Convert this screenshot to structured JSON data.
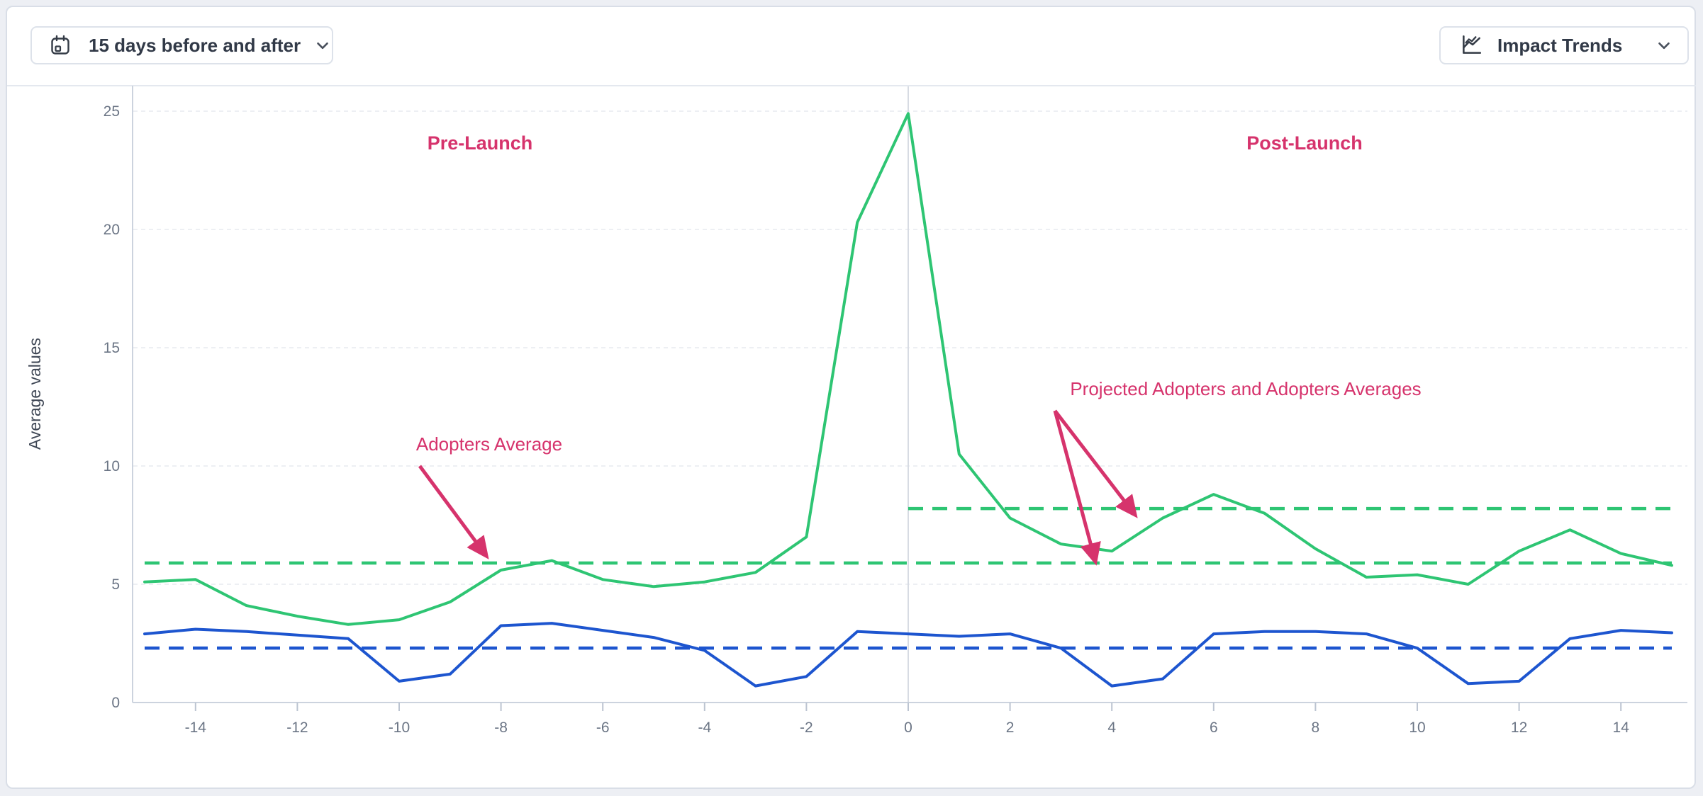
{
  "header": {
    "date_range_button": {
      "label": "15 days before and after",
      "icon": "calendar-icon"
    },
    "trends_button": {
      "label": "Impact Trends",
      "icon": "line-chart-icon"
    }
  },
  "chart_data": {
    "type": "line",
    "title": "",
    "xlabel": "",
    "ylabel": "Average values",
    "xlim": [
      -15,
      15
    ],
    "ylim": [
      0,
      26
    ],
    "grid": true,
    "legend": false,
    "x": [
      -15,
      -14,
      -13,
      -12,
      -11,
      -10,
      -9,
      -8,
      -7,
      -6,
      -5,
      -4,
      -3,
      -2,
      -1,
      0,
      1,
      2,
      3,
      4,
      5,
      6,
      7,
      8,
      9,
      10,
      11,
      12,
      13,
      14,
      15
    ],
    "x_tick_labels": [
      -14,
      -12,
      -10,
      -8,
      -6,
      -4,
      -2,
      0,
      2,
      4,
      6,
      8,
      10,
      12,
      14
    ],
    "y_ticks": [
      0,
      5,
      10,
      15,
      20,
      25
    ],
    "series": [
      {
        "name": "Adopters",
        "color": "#2ec573",
        "style": "solid",
        "values": [
          5.1,
          5.2,
          4.1,
          3.65,
          3.3,
          3.5,
          4.25,
          5.6,
          6.0,
          5.2,
          4.9,
          5.1,
          5.5,
          7.0,
          20.3,
          24.9,
          10.5,
          7.8,
          6.7,
          6.4,
          7.8,
          8.8,
          8.0,
          6.5,
          5.3,
          5.4,
          5.0,
          6.4,
          7.3,
          6.3,
          5.8
        ]
      },
      {
        "name": "Projected Adopters",
        "color": "#1d55cf",
        "style": "solid",
        "values": [
          2.9,
          3.1,
          3.0,
          2.85,
          2.7,
          0.9,
          1.2,
          3.25,
          3.35,
          3.05,
          2.75,
          2.2,
          0.7,
          1.1,
          3.0,
          2.9,
          2.8,
          2.9,
          2.3,
          0.7,
          1.0,
          2.9,
          3.0,
          3.0,
          2.9,
          2.3,
          0.8,
          0.9,
          2.7,
          3.05,
          2.95
        ]
      }
    ],
    "reference_lines": [
      {
        "name": "adopters-average-line",
        "value": 5.9,
        "color": "#2ec573",
        "style": "dashed",
        "x_start": -15,
        "x_end": 15
      },
      {
        "name": "projected-adopters-post-average-line",
        "value": 8.2,
        "color": "#2ec573",
        "style": "dashed",
        "x_start": 0,
        "x_end": 15
      },
      {
        "name": "projected-adopters-average-line",
        "value": 2.3,
        "color": "#1d55cf",
        "style": "dashed",
        "x_start": -15,
        "x_end": 15
      }
    ],
    "launch_line_x": 0,
    "annotations": {
      "color": "#d6336c",
      "pre_launch": "Pre-Launch",
      "post_launch": "Post-Launch",
      "adopters_average": "Adopters Average",
      "projected_and_adopters": "Projected Adopters and Adopters Averages"
    }
  }
}
